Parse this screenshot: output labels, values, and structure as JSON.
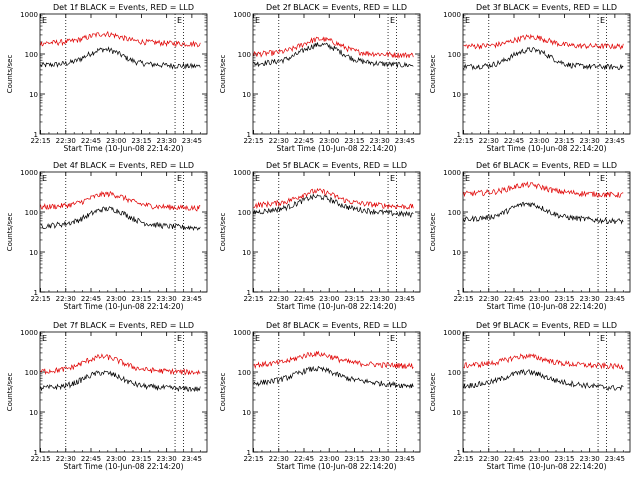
{
  "colors": {
    "events": "#000000",
    "lld": "#e00000",
    "background": "#ffffff",
    "axes": "#000000"
  },
  "chart_data": [
    {
      "type": "line",
      "title": "Det 1f BLACK = Events, RED = LLD",
      "xlabel": "Start Time (10-Jun-08 22:14:20)",
      "ylabel": "Counts/sec",
      "yscale": "log",
      "ylim": [
        1,
        1000
      ],
      "x_ticks": [
        "22:15",
        "22:30",
        "22:45",
        "23:00",
        "23:15",
        "23:30",
        "23:45"
      ],
      "y_ticks": [
        "1",
        "10",
        "100",
        "1000"
      ],
      "dotted_lines": [
        "22:30",
        "23:35",
        "23:40"
      ],
      "corner_labels": [
        "E",
        "E"
      ],
      "series": [
        {
          "name": "BLACK = Events",
          "baseline": 55,
          "bump": 70,
          "center": "22:53",
          "width_min": 12,
          "drift": 0.1
        },
        {
          "name": "RED = LLD",
          "baseline": 195,
          "bump": 110,
          "center": "22:53",
          "width_min": 12,
          "drift": 0.08
        }
      ]
    },
    {
      "type": "line",
      "title": "Det 2f BLACK = Events, RED = LLD",
      "xlabel": "Start Time (10-Jun-08 22:14:20)",
      "ylabel": "Counts/sec",
      "yscale": "log",
      "ylim": [
        1,
        1000
      ],
      "x_ticks": [
        "22:15",
        "22:30",
        "22:45",
        "23:00",
        "23:15",
        "23:30",
        "23:45"
      ],
      "y_ticks": [
        "1",
        "10",
        "100",
        "1000"
      ],
      "dotted_lines": [
        "22:30",
        "23:35",
        "23:40"
      ],
      "corner_labels": [
        "E",
        "E"
      ],
      "series": [
        {
          "name": "BLACK = Events",
          "baseline": 62,
          "bump": 100,
          "center": "22:55",
          "width_min": 13,
          "drift": 0.15
        },
        {
          "name": "RED = LLD",
          "baseline": 105,
          "bump": 120,
          "center": "22:55",
          "width_min": 13,
          "drift": 0.1
        }
      ]
    },
    {
      "type": "line",
      "title": "Det 3f BLACK = Events, RED = LLD",
      "xlabel": "Start Time (10-Jun-08 22:14:20)",
      "ylabel": "Counts/sec",
      "yscale": "log",
      "ylim": [
        1,
        1000
      ],
      "x_ticks": [
        "22:15",
        "22:30",
        "22:45",
        "23:00",
        "23:15",
        "23:30",
        "23:45"
      ],
      "y_ticks": [
        "1",
        "10",
        "100",
        "1000"
      ],
      "dotted_lines": [
        "22:30",
        "23:35",
        "23:40"
      ],
      "corner_labels": [
        "E",
        "E"
      ],
      "series": [
        {
          "name": "BLACK = Events",
          "baseline": 50,
          "bump": 75,
          "center": "22:55",
          "width_min": 13,
          "drift": 0.05
        },
        {
          "name": "RED = LLD",
          "baseline": 160,
          "bump": 105,
          "center": "22:55",
          "width_min": 13,
          "drift": 0.02
        }
      ]
    },
    {
      "type": "line",
      "title": "Det 4f BLACK = Events, RED = LLD",
      "xlabel": "Start Time (10-Jun-08 22:14:20)",
      "ylabel": "Counts/sec",
      "yscale": "log",
      "ylim": [
        1,
        1000
      ],
      "x_ticks": [
        "22:15",
        "22:30",
        "22:45",
        "23:00",
        "23:15",
        "23:30",
        "23:45"
      ],
      "y_ticks": [
        "1",
        "10",
        "100",
        "1000"
      ],
      "dotted_lines": [
        "22:30",
        "23:35",
        "23:40"
      ],
      "corner_labels": [
        "E",
        "E"
      ],
      "series": [
        {
          "name": "BLACK = Events",
          "baseline": 48,
          "bump": 65,
          "center": "22:55",
          "width_min": 13,
          "drift": 0.15
        },
        {
          "name": "RED = LLD",
          "baseline": 140,
          "bump": 130,
          "center": "22:55",
          "width_min": 13,
          "drift": 0.1
        }
      ]
    },
    {
      "type": "line",
      "title": "Det 5f BLACK = Events, RED = LLD",
      "xlabel": "Start Time (10-Jun-08 22:14:20)",
      "ylabel": "Counts/sec",
      "yscale": "log",
      "ylim": [
        1,
        1000
      ],
      "x_ticks": [
        "22:15",
        "22:30",
        "22:45",
        "23:00",
        "23:15",
        "23:30",
        "23:45"
      ],
      "y_ticks": [
        "1",
        "10",
        "100",
        "1000"
      ],
      "dotted_lines": [
        "22:30",
        "23:35",
        "23:40"
      ],
      "corner_labels": [
        "E",
        "E"
      ],
      "series": [
        {
          "name": "BLACK = Events",
          "baseline": 110,
          "bump": 110,
          "center": "22:53",
          "width_min": 12,
          "drift": 0.2
        },
        {
          "name": "RED = LLD",
          "baseline": 160,
          "bump": 150,
          "center": "22:53",
          "width_min": 12,
          "drift": 0.15
        }
      ]
    },
    {
      "type": "line",
      "title": "Det 6f BLACK = Events, RED = LLD",
      "xlabel": "Start Time (10-Jun-08 22:14:20)",
      "ylabel": "Counts/sec",
      "yscale": "log",
      "ylim": [
        1,
        1000
      ],
      "x_ticks": [
        "22:15",
        "22:30",
        "22:45",
        "23:00",
        "23:15",
        "23:30",
        "23:45"
      ],
      "y_ticks": [
        "1",
        "10",
        "100",
        "1000"
      ],
      "dotted_lines": [
        "22:30",
        "23:35",
        "23:40"
      ],
      "corner_labels": [
        "E",
        "E"
      ],
      "series": [
        {
          "name": "BLACK = Events",
          "baseline": 70,
          "bump": 80,
          "center": "22:53",
          "width_min": 12,
          "drift": 0.15
        },
        {
          "name": "RED = LLD",
          "baseline": 300,
          "bump": 150,
          "center": "22:53",
          "width_min": 12,
          "drift": 0.1
        }
      ]
    },
    {
      "type": "line",
      "title": "Det 7f BLACK = Events, RED = LLD",
      "xlabel": "Start Time (10-Jun-08 22:14:20)",
      "ylabel": "Counts/sec",
      "yscale": "log",
      "ylim": [
        1,
        1000
      ],
      "x_ticks": [
        "22:15",
        "22:30",
        "22:45",
        "23:00",
        "23:15",
        "23:30",
        "23:45"
      ],
      "y_ticks": [
        "1",
        "10",
        "100",
        "1000"
      ],
      "dotted_lines": [
        "22:30",
        "23:35",
        "23:40"
      ],
      "corner_labels": [
        "E",
        "E"
      ],
      "series": [
        {
          "name": "BLACK = Events",
          "baseline": 42,
          "bump": 50,
          "center": "22:52",
          "width_min": 13,
          "drift": 0.1
        },
        {
          "name": "RED = LLD",
          "baseline": 110,
          "bump": 120,
          "center": "22:52",
          "width_min": 13,
          "drift": 0.1
        }
      ]
    },
    {
      "type": "line",
      "title": "Det 8f BLACK = Events, RED = LLD",
      "xlabel": "Start Time (10-Jun-08 22:14:20)",
      "ylabel": "Counts/sec",
      "yscale": "log",
      "ylim": [
        1,
        1000
      ],
      "x_ticks": [
        "22:15",
        "22:30",
        "22:45",
        "23:00",
        "23:15",
        "23:30",
        "23:45"
      ],
      "y_ticks": [
        "1",
        "10",
        "100",
        "1000"
      ],
      "dotted_lines": [
        "22:30",
        "23:35",
        "23:40"
      ],
      "corner_labels": [
        "E",
        "E"
      ],
      "series": [
        {
          "name": "BLACK = Events",
          "baseline": 58,
          "bump": 50,
          "center": "22:52",
          "width_min": 13,
          "drift": 0.2
        },
        {
          "name": "RED = LLD",
          "baseline": 160,
          "bump": 110,
          "center": "22:52",
          "width_min": 13,
          "drift": 0.1
        }
      ]
    },
    {
      "type": "line",
      "title": "Det 9f BLACK = Events, RED = LLD",
      "xlabel": "Start Time (10-Jun-08 22:14:20)",
      "ylabel": "Counts/sec",
      "yscale": "log",
      "ylim": [
        1,
        1000
      ],
      "x_ticks": [
        "22:15",
        "22:30",
        "22:45",
        "23:00",
        "23:15",
        "23:30",
        "23:45"
      ],
      "y_ticks": [
        "1",
        "10",
        "100",
        "1000"
      ],
      "dotted_lines": [
        "22:30",
        "23:35",
        "23:40"
      ],
      "corner_labels": [
        "E",
        "E"
      ],
      "series": [
        {
          "name": "BLACK = Events",
          "baseline": 50,
          "bump": 40,
          "center": "22:52",
          "width_min": 13,
          "drift": 0.2
        },
        {
          "name": "RED = LLD",
          "baseline": 155,
          "bump": 80,
          "center": "22:52",
          "width_min": 13,
          "drift": 0.1
        }
      ]
    }
  ]
}
